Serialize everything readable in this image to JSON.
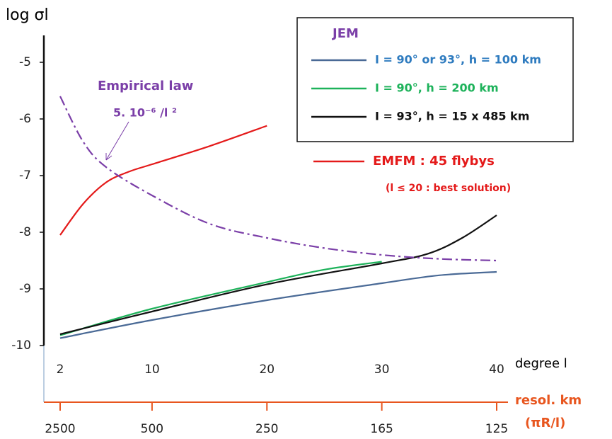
{
  "chart_data": {
    "type": "line",
    "y_label": "log σl",
    "x_label": "degree l",
    "xlim": [
      2,
      40
    ],
    "xticks": [
      2,
      10,
      20,
      30,
      40
    ],
    "ylim": [
      -10,
      -4.5
    ],
    "yticks": [
      -10,
      -9,
      -8,
      -7,
      -6,
      -5
    ],
    "legend_title": "JEM",
    "series": [
      {
        "name": "I = 90° or 93°, h = 100 km",
        "color": "#4a6a96",
        "label_color": "#2e7bbf",
        "x": [
          2,
          10,
          20,
          30,
          35,
          40
        ],
        "values": [
          -9.87,
          -9.55,
          -9.2,
          -8.9,
          -8.76,
          -8.7
        ]
      },
      {
        "name": "I = 90°, h = 200 km",
        "color": "#1db25a",
        "label_color": "#1db25a",
        "x": [
          2,
          10,
          20,
          25,
          30
        ],
        "values": [
          -9.82,
          -9.35,
          -8.88,
          -8.66,
          -8.52
        ]
      },
      {
        "name": "I = 93°, h = 15 x 485 km",
        "color": "#111111",
        "label_color": "#111111",
        "x": [
          2,
          10,
          20,
          30,
          34,
          37,
          40
        ],
        "values": [
          -9.8,
          -9.4,
          -8.92,
          -8.55,
          -8.38,
          -8.1,
          -7.7
        ]
      },
      {
        "name": "EMFM : 45 flybys",
        "color": "#e41a1a",
        "label_color": "#e41a1a",
        "x": [
          2,
          4,
          6,
          8,
          10,
          15,
          20
        ],
        "values": [
          -8.05,
          -7.5,
          -7.12,
          -6.93,
          -6.8,
          -6.48,
          -6.12
        ]
      },
      {
        "name": "Empirical law",
        "color": "#7b3fa8",
        "label_color": "#7b3fa8",
        "dash": true,
        "x": [
          2,
          4,
          6,
          10,
          15,
          20,
          25,
          30,
          35,
          40
        ],
        "values": [
          -5.6,
          -6.4,
          -6.85,
          -7.35,
          -7.85,
          -8.1,
          -8.28,
          -8.4,
          -8.47,
          -8.5
        ]
      }
    ],
    "emfm_note": "(l ≤ 20 : best solution)",
    "empirical_formula": "5. 10⁻⁶ /l ²",
    "resolution_axis": {
      "label": "resol. km",
      "sublabel": "(πR/l)",
      "color": "#e8561f",
      "ticks": [
        2500,
        500,
        250,
        165,
        125
      ],
      "positions": [
        2,
        10,
        20,
        30,
        40
      ]
    }
  }
}
